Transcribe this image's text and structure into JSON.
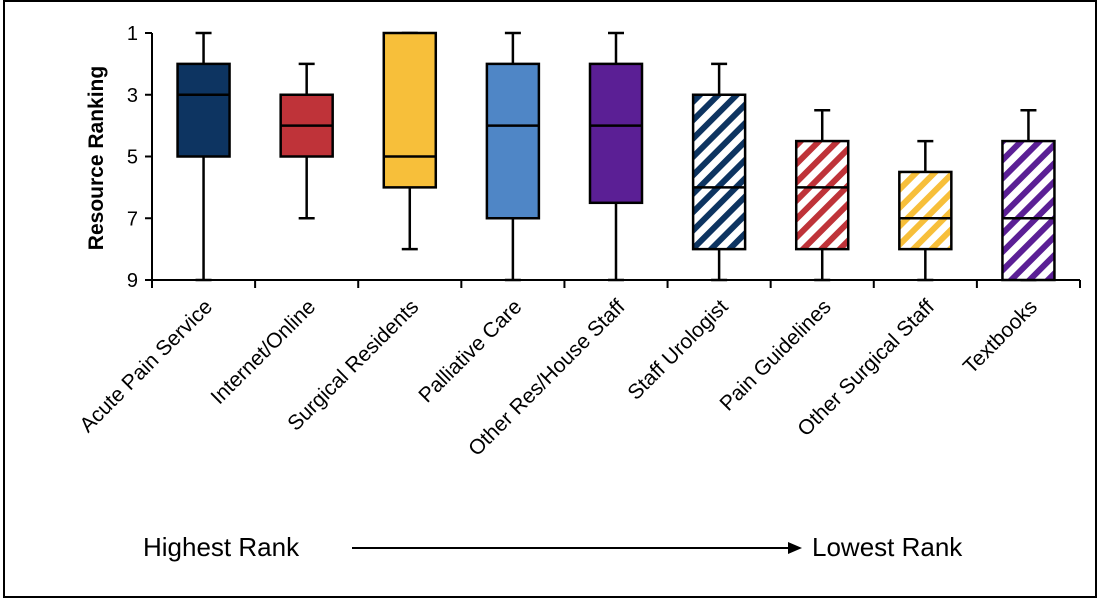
{
  "chart_data": {
    "type": "boxplot",
    "ylabel": "Resource Ranking",
    "ylim": [
      1,
      9
    ],
    "y_inverted": true,
    "yticks": [
      "1",
      "3",
      "5",
      "7",
      "9"
    ],
    "grid": false,
    "categories": [
      "Acute Pain Service",
      "Internet/Online",
      "Surgical Residents",
      "Palliative Care",
      "Other Res/House Staff",
      "Staff Urologist",
      "Pain Guidelines",
      "Other Surgical Staff",
      "Textbooks"
    ],
    "boxes": [
      {
        "min": 1,
        "q1": 2,
        "median": 3,
        "q3": 5,
        "max": 9,
        "color": "#0d3461",
        "pattern": "solid"
      },
      {
        "min": 2,
        "q1": 3,
        "median": 4,
        "q3": 5,
        "max": 7,
        "color": "#bf3339",
        "pattern": "solid"
      },
      {
        "min": 1,
        "q1": 1,
        "median": 5,
        "q3": 6,
        "max": 8,
        "color": "#f7bf3a",
        "pattern": "solid"
      },
      {
        "min": 1,
        "q1": 2,
        "median": 4,
        "q3": 7,
        "max": 9,
        "color": "#4f86c6",
        "pattern": "solid"
      },
      {
        "min": 1,
        "q1": 2,
        "median": 4,
        "q3": 6.5,
        "max": 9,
        "color": "#5b1f95",
        "pattern": "solid"
      },
      {
        "min": 2,
        "q1": 3,
        "median": 6,
        "q3": 8,
        "max": 9,
        "color": "#0d3461",
        "pattern": "hatch"
      },
      {
        "min": 3.5,
        "q1": 4.5,
        "median": 6,
        "q3": 8,
        "max": 9,
        "color": "#bf3339",
        "pattern": "hatch"
      },
      {
        "min": 4.5,
        "q1": 5.5,
        "median": 7,
        "q3": 8,
        "max": 9,
        "color": "#f7bf3a",
        "pattern": "hatch"
      },
      {
        "min": 3.5,
        "q1": 4.5,
        "median": 7,
        "q3": 9,
        "max": 9,
        "color": "#5b1f95",
        "pattern": "hatch"
      }
    ],
    "annotation": {
      "left": "Highest Rank",
      "right": "Lowest Rank"
    }
  }
}
